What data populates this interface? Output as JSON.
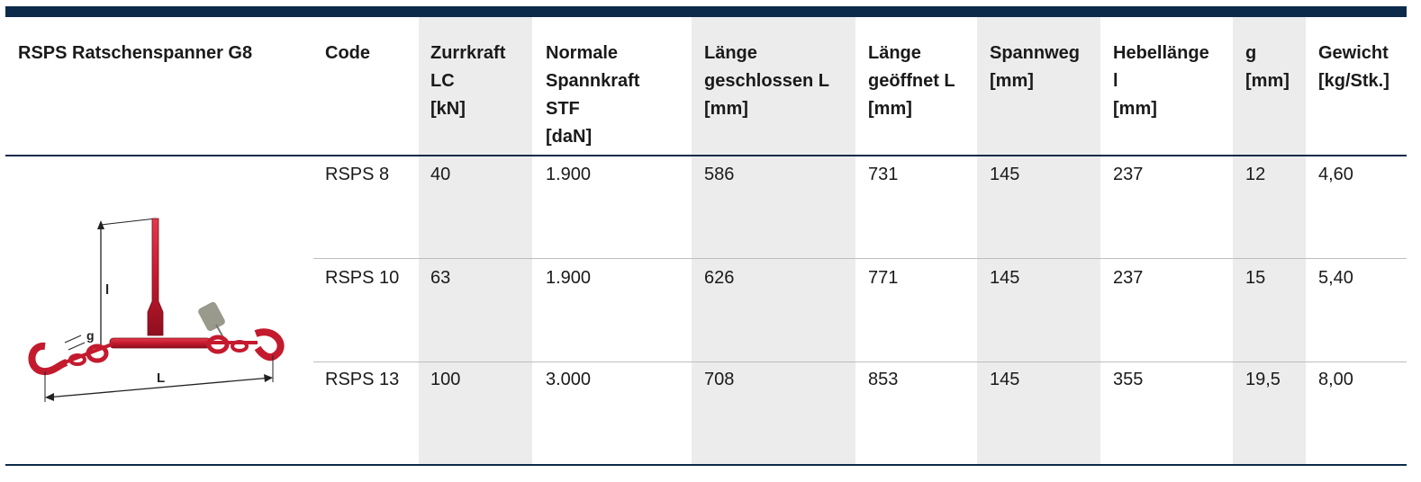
{
  "table": {
    "product_title": "RSPS Ratschenspanner G8",
    "headers": [
      "Code",
      "Zurrkraft\nLC\n[kN]",
      "Normale\nSpannkraft\nSTF\n[daN]",
      "Länge\ngeschlossen L\n[mm]",
      "Länge\ngeöffnet L\n[mm]",
      "Spannweg\n[mm]",
      "Hebellänge\nl\n[mm]",
      "g\n[mm]",
      "Gewicht\n[kg/Stk.]"
    ],
    "rows": [
      [
        "RSPS 8",
        "40",
        "1.900",
        "586",
        "731",
        "145",
        "237",
        "12",
        "4,60"
      ],
      [
        "RSPS 10",
        "63",
        "1.900",
        "626",
        "771",
        "145",
        "237",
        "15",
        "5,40"
      ],
      [
        "RSPS 13",
        "100",
        "3.000",
        "708",
        "853",
        "145",
        "355",
        "19,5",
        "8,00"
      ]
    ]
  },
  "diagram": {
    "label_l": "l",
    "label_g": "g",
    "label_L": "L"
  },
  "colors": {
    "rule": "#0c2a4a",
    "shade": "#ececec",
    "product_red": "#c41a2e"
  }
}
